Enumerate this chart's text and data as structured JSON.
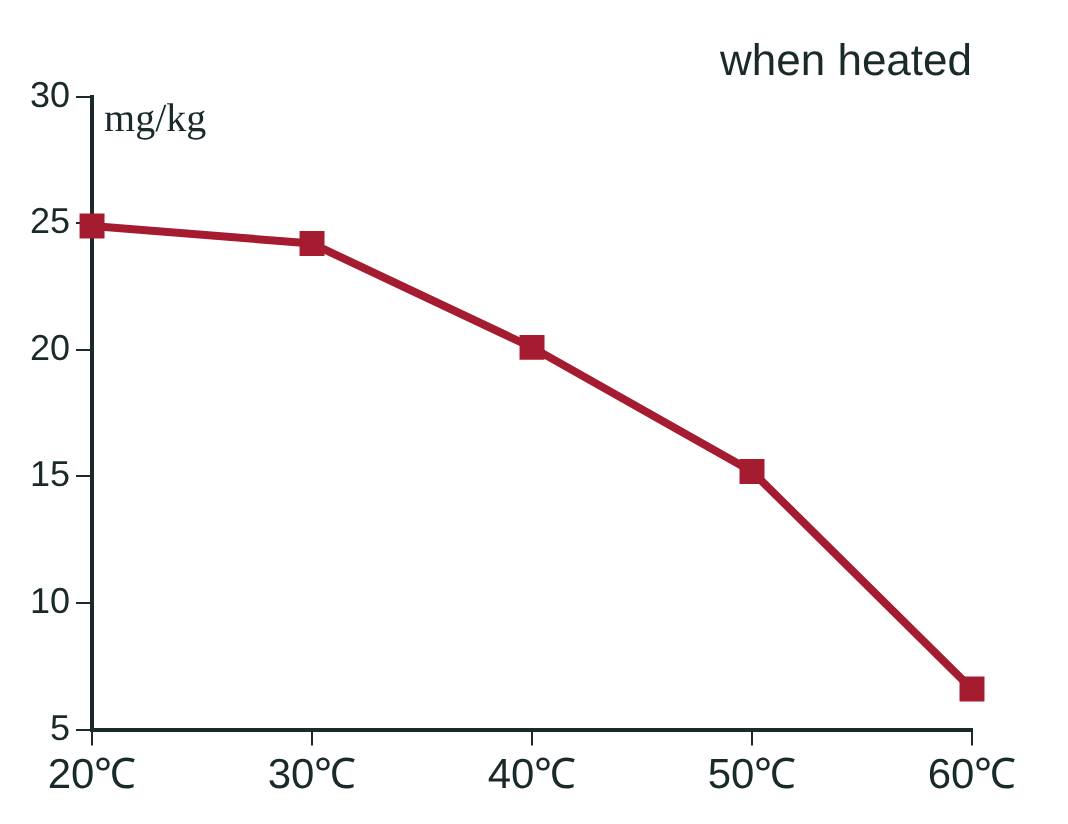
{
  "chart_data": {
    "type": "line",
    "title": "when heated",
    "ylabel": "mg/kg",
    "categories": [
      "20℃",
      "30℃",
      "40℃",
      "50℃",
      "60℃"
    ],
    "series": [
      {
        "color": "#a51c30",
        "values": [
          24.9,
          24.2,
          20.1,
          15.2,
          6.6
        ]
      }
    ],
    "ylim": [
      5,
      30
    ],
    "yticks": [
      5,
      10,
      15,
      20,
      25,
      30
    ],
    "marker": "square",
    "line_style": "solid",
    "legend": false
  }
}
